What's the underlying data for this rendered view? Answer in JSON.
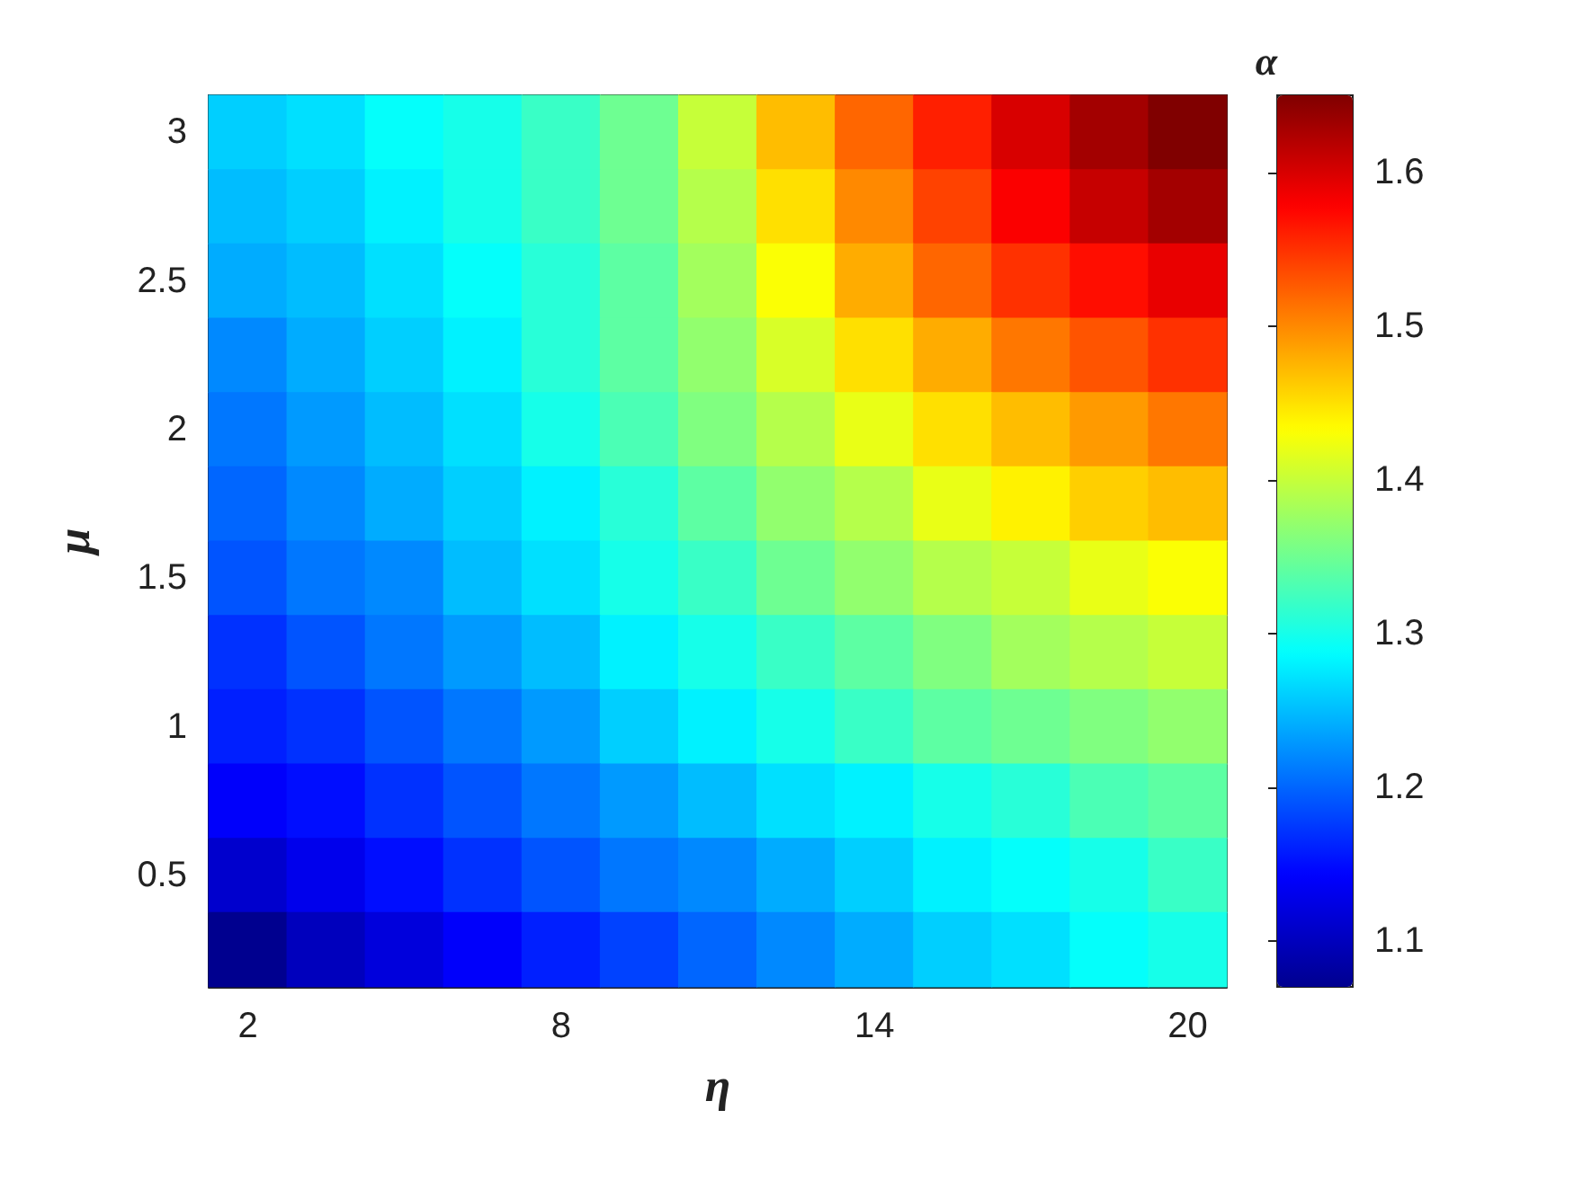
{
  "chart_data": {
    "type": "heatmap",
    "xlabel": "η",
    "ylabel": "μ",
    "clabel": "α",
    "categories": [
      "2",
      null,
      null,
      null,
      "8",
      null,
      null,
      null,
      "14",
      null,
      null,
      null,
      "20"
    ],
    "y_categories": [
      "3",
      null,
      "2.5",
      null,
      "2",
      null,
      "1.5",
      null,
      "1",
      null,
      "0.5",
      null
    ],
    "cells": [
      [
        1.26,
        1.27,
        1.29,
        1.3,
        1.32,
        1.35,
        1.4,
        1.47,
        1.52,
        1.56,
        1.6,
        1.63,
        1.65
      ],
      [
        1.25,
        1.26,
        1.28,
        1.3,
        1.32,
        1.35,
        1.39,
        1.45,
        1.5,
        1.54,
        1.58,
        1.61,
        1.63
      ],
      [
        1.24,
        1.25,
        1.27,
        1.29,
        1.31,
        1.34,
        1.38,
        1.43,
        1.48,
        1.52,
        1.55,
        1.57,
        1.59
      ],
      [
        1.22,
        1.24,
        1.26,
        1.28,
        1.31,
        1.34,
        1.37,
        1.41,
        1.45,
        1.48,
        1.51,
        1.53,
        1.55
      ],
      [
        1.21,
        1.23,
        1.25,
        1.27,
        1.3,
        1.33,
        1.36,
        1.39,
        1.42,
        1.45,
        1.47,
        1.49,
        1.51
      ],
      [
        1.2,
        1.22,
        1.24,
        1.26,
        1.28,
        1.31,
        1.34,
        1.37,
        1.39,
        1.42,
        1.44,
        1.46,
        1.47
      ],
      [
        1.19,
        1.21,
        1.22,
        1.25,
        1.27,
        1.3,
        1.32,
        1.35,
        1.37,
        1.39,
        1.4,
        1.42,
        1.43
      ],
      [
        1.17,
        1.19,
        1.21,
        1.23,
        1.25,
        1.28,
        1.3,
        1.32,
        1.34,
        1.36,
        1.38,
        1.39,
        1.4
      ],
      [
        1.16,
        1.17,
        1.19,
        1.21,
        1.23,
        1.26,
        1.28,
        1.3,
        1.32,
        1.34,
        1.35,
        1.36,
        1.37
      ],
      [
        1.14,
        1.15,
        1.17,
        1.19,
        1.21,
        1.23,
        1.25,
        1.27,
        1.28,
        1.3,
        1.31,
        1.33,
        1.34
      ],
      [
        1.11,
        1.13,
        1.15,
        1.17,
        1.19,
        1.21,
        1.22,
        1.24,
        1.26,
        1.28,
        1.29,
        1.3,
        1.32
      ],
      [
        1.07,
        1.1,
        1.12,
        1.14,
        1.16,
        1.18,
        1.2,
        1.22,
        1.24,
        1.26,
        1.27,
        1.29,
        1.3
      ]
    ],
    "clim": [
      1.07,
      1.65
    ],
    "cticks": [
      1.1,
      1.2,
      1.3,
      1.4,
      1.5,
      1.6
    ]
  }
}
